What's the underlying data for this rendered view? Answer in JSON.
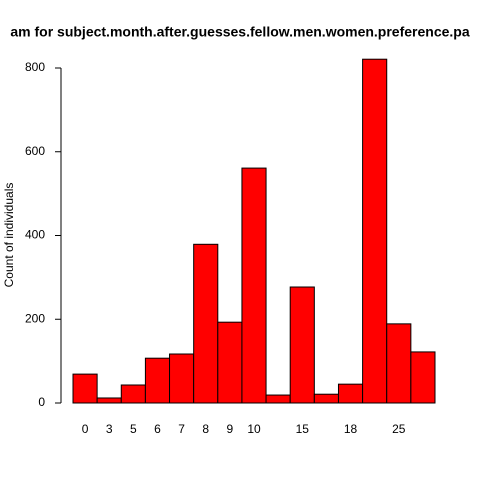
{
  "chart_data": {
    "type": "bar",
    "title": "am for subject.month.after.guesses.fellow.men.women.preference.pa",
    "ylabel": "Count of individuals",
    "categories": [
      "0",
      "3",
      "5",
      "6",
      "7",
      "8",
      "9",
      "10",
      null,
      "15",
      null,
      "18",
      null,
      "25",
      null
    ],
    "values": [
      69,
      12,
      43,
      107,
      117,
      379,
      193,
      561,
      19,
      277,
      21,
      45,
      821,
      189,
      122
    ],
    "color": "#ff0000",
    "ylim": [
      0,
      800
    ],
    "yticks": [
      0,
      200,
      400,
      600,
      800
    ],
    "grid": false
  }
}
